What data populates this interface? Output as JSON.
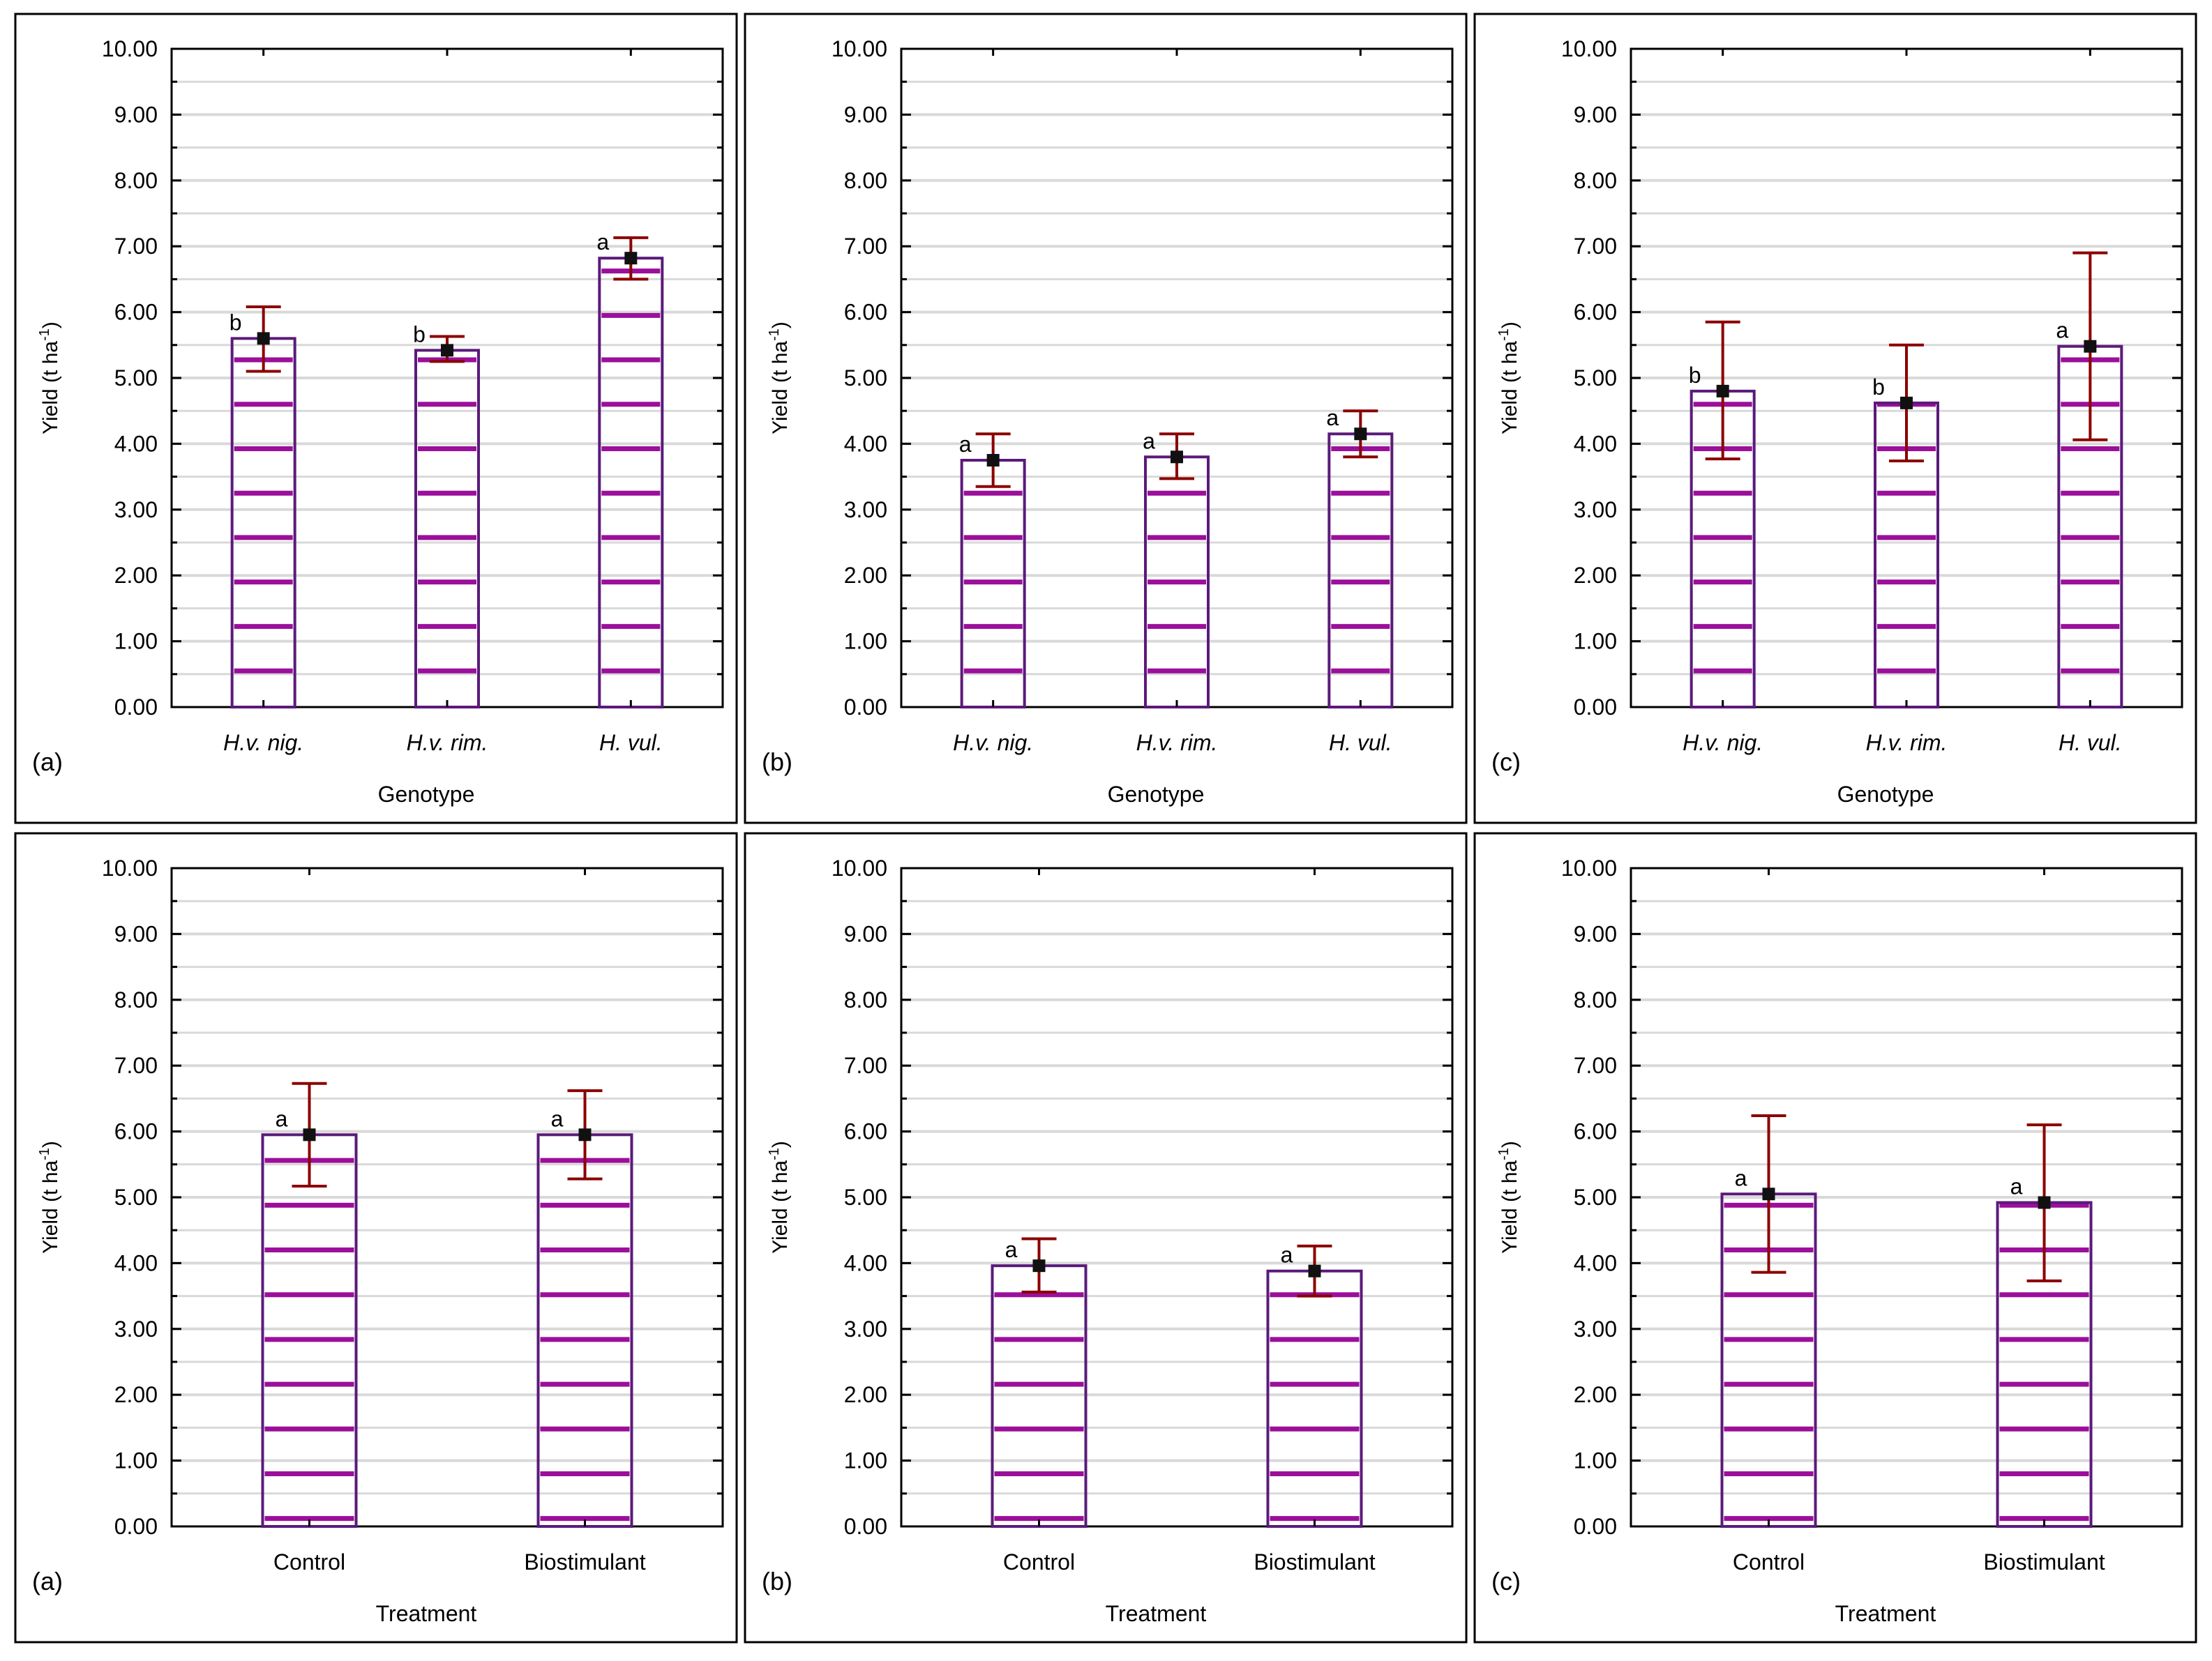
{
  "colors": {
    "bar_outline": "#5b1a7a",
    "hatch": "#9b0f9b",
    "grid": "#d9d9d9",
    "error_bar": "#8b0000",
    "marker": "#111111",
    "frame": "#000000"
  },
  "chart_data": [
    {
      "type": "bar",
      "panel_label": "(a)",
      "xlabel": "Genotype",
      "ylabel": "Yield (t ha",
      "ylabel_sup": "-1",
      "ylabel_close": ")",
      "ylim": [
        0,
        10
      ],
      "yticks": [
        "0.00",
        "1.00",
        "2.00",
        "3.00",
        "4.00",
        "5.00",
        "6.00",
        "7.00",
        "8.00",
        "9.00",
        "10.00"
      ],
      "categories": [
        "H.v. nig.",
        "H.v. rim.",
        "H. vul."
      ],
      "italic_categories": true,
      "values": [
        5.6,
        5.42,
        6.82
      ],
      "err_low": [
        5.1,
        5.25,
        6.5
      ],
      "err_high": [
        6.08,
        5.63,
        7.13
      ],
      "letters": [
        "b",
        "b",
        "a"
      ]
    },
    {
      "type": "bar",
      "panel_label": "(b)",
      "xlabel": "Genotype",
      "ylabel": "Yield (t ha",
      "ylabel_sup": "-1",
      "ylabel_close": ")",
      "ylim": [
        0,
        10
      ],
      "yticks": [
        "0.00",
        "1.00",
        "2.00",
        "3.00",
        "4.00",
        "5.00",
        "6.00",
        "7.00",
        "8.00",
        "9.00",
        "10.00"
      ],
      "categories": [
        "H.v. nig.",
        "H.v. rim.",
        "H. vul."
      ],
      "italic_categories": true,
      "values": [
        3.75,
        3.8,
        4.15
      ],
      "err_low": [
        3.35,
        3.47,
        3.8
      ],
      "err_high": [
        4.15,
        4.15,
        4.5
      ],
      "letters": [
        "a",
        "a",
        "a"
      ]
    },
    {
      "type": "bar",
      "panel_label": "(c)",
      "xlabel": "Genotype",
      "ylabel": "Yield (t ha",
      "ylabel_sup": "-1",
      "ylabel_close": ")",
      "ylim": [
        0,
        10
      ],
      "yticks": [
        "0.00",
        "1.00",
        "2.00",
        "3.00",
        "4.00",
        "5.00",
        "6.00",
        "7.00",
        "8.00",
        "9.00",
        "10.00"
      ],
      "categories": [
        "H.v. nig.",
        "H.v. rim.",
        "H. vul."
      ],
      "italic_categories": true,
      "values": [
        4.8,
        4.62,
        5.48
      ],
      "err_low": [
        3.77,
        3.74,
        4.06
      ],
      "err_high": [
        5.85,
        5.5,
        6.9
      ],
      "letters": [
        "b",
        "b",
        "a"
      ]
    },
    {
      "type": "bar",
      "panel_label": "(a)",
      "xlabel": "Treatment",
      "ylabel": "Yield (t ha",
      "ylabel_sup": "-1",
      "ylabel_close": ")",
      "ylim": [
        0,
        10
      ],
      "yticks": [
        "0.00",
        "1.00",
        "2.00",
        "3.00",
        "4.00",
        "5.00",
        "6.00",
        "7.00",
        "8.00",
        "9.00",
        "10.00"
      ],
      "categories": [
        "Control",
        "Biostimulant"
      ],
      "italic_categories": false,
      "values": [
        5.95,
        5.95
      ],
      "err_low": [
        5.17,
        5.28
      ],
      "err_high": [
        6.73,
        6.62
      ],
      "letters": [
        "a",
        "a"
      ]
    },
    {
      "type": "bar",
      "panel_label": "(b)",
      "xlabel": "Treatment",
      "ylabel": "Yield (t ha",
      "ylabel_sup": "-1",
      "ylabel_close": ")",
      "ylim": [
        0,
        10
      ],
      "yticks": [
        "0.00",
        "1.00",
        "2.00",
        "3.00",
        "4.00",
        "5.00",
        "6.00",
        "7.00",
        "8.00",
        "9.00",
        "10.00"
      ],
      "categories": [
        "Control",
        "Biostimulant"
      ],
      "italic_categories": false,
      "values": [
        3.96,
        3.88
      ],
      "err_low": [
        3.56,
        3.5
      ],
      "err_high": [
        4.37,
        4.26
      ],
      "letters": [
        "a",
        "a"
      ]
    },
    {
      "type": "bar",
      "panel_label": "(c)",
      "xlabel": "Treatment",
      "ylabel": "Yield (t ha",
      "ylabel_sup": "-1",
      "ylabel_close": ")",
      "ylim": [
        0,
        10
      ],
      "yticks": [
        "0.00",
        "1.00",
        "2.00",
        "3.00",
        "4.00",
        "5.00",
        "6.00",
        "7.00",
        "8.00",
        "9.00",
        "10.00"
      ],
      "categories": [
        "Control",
        "Biostimulant"
      ],
      "italic_categories": false,
      "values": [
        5.05,
        4.92
      ],
      "err_low": [
        3.86,
        3.73
      ],
      "err_high": [
        6.24,
        6.1
      ],
      "letters": [
        "a",
        "a"
      ]
    }
  ]
}
